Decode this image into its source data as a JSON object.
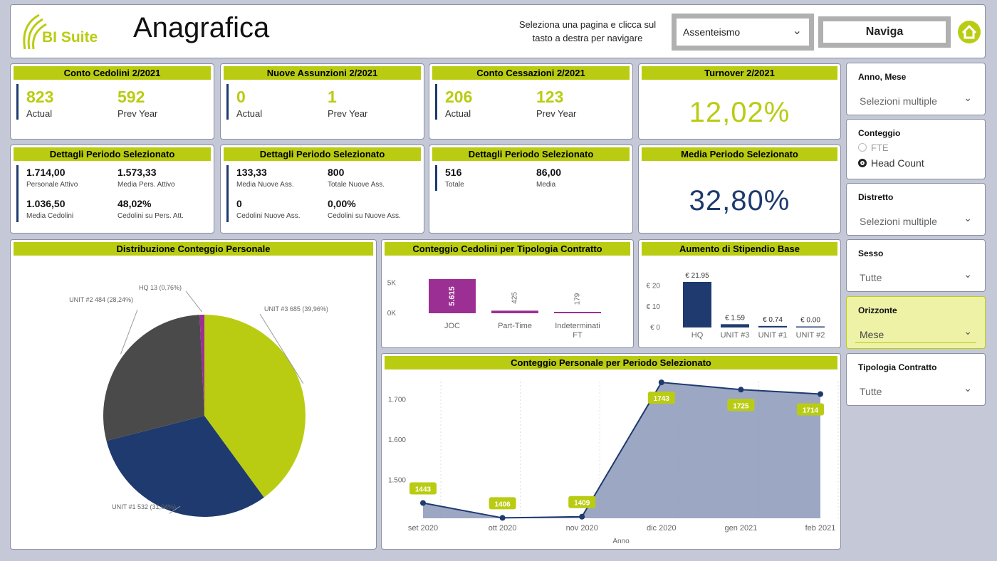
{
  "header": {
    "logo_text": "BI Suite",
    "page_title": "Anagrafica",
    "nav_hint_line1": "Seleziona una pagina e clicca sul",
    "nav_hint_line2": "tasto a destra per navigare",
    "dropdown_value": "Assenteismo",
    "naviga_label": "Naviga",
    "home_icon": "home-icon"
  },
  "kpi_row1": [
    {
      "title": "Conto Cedolini  2/2021",
      "actual": "823",
      "actual_label": "Actual",
      "prev": "592",
      "prev_label": "Prev Year"
    },
    {
      "title": "Nuove Assunzioni  2/2021",
      "actual": "0",
      "actual_label": "Actual",
      "prev": "1",
      "prev_label": "Prev Year"
    },
    {
      "title": "Conto Cessazioni  2/2021",
      "actual": "206",
      "actual_label": "Actual",
      "prev": "123",
      "prev_label": "Prev Year"
    },
    {
      "title": "Turnover  2/2021",
      "value": "12,02%"
    }
  ],
  "kpi_row2": [
    {
      "title": "Dettagli Periodo Selezionato",
      "v1": "1.714,00",
      "l1": "Personale Attivo",
      "v2": "1.573,33",
      "l2": "Media Pers. Attivo",
      "v3": "1.036,50",
      "l3": "Media Cedolini",
      "v4": "48,02%",
      "l4": "Cedolini su Pers. Att."
    },
    {
      "title": "Dettagli Periodo Selezionato",
      "v1": "133,33",
      "l1": "Media Nuove Ass.",
      "v2": "800",
      "l2": "Totale Nuove Ass.",
      "v3": "0",
      "l3": "Cedolini Nuove Ass.",
      "v4": "0,00%",
      "l4": "Cedolini su Nuove Ass."
    },
    {
      "title": "Dettagli Periodo Selezionato",
      "v1": "516",
      "l1": "Totale",
      "v2": "86,00",
      "l2": "Media"
    },
    {
      "title": "Media Periodo Selezionato",
      "value": "32,80%"
    }
  ],
  "slicers": [
    {
      "title": "Anno, Mese",
      "value": "Selezioni multiple"
    },
    {
      "title": "Conteggio",
      "options": [
        "FTE",
        "Head Count"
      ],
      "selected": "Head Count"
    },
    {
      "title": "Distretto",
      "value": "Selezioni multiple"
    },
    {
      "title": "Sesso",
      "value": "Tutte"
    },
    {
      "title": "Orizzonte",
      "value": "Mese"
    },
    {
      "title": "Tipologia Contratto",
      "value": "Tutte"
    }
  ],
  "colors": {
    "accent": "#b9cc12",
    "navy": "#1e3a6e",
    "purple": "#9c2f94",
    "grey": "#4a4a4a",
    "area": "#8b98b8"
  },
  "chart_data": [
    {
      "type": "pie",
      "title": "Distribuzione Conteggio Personale",
      "slices": [
        {
          "label": "UNIT #3 685 (39,96%)",
          "value": 685,
          "color": "#b9cc12"
        },
        {
          "label": "UNIT #1 532 (31,04%)",
          "value": 532,
          "color": "#1e3a6e"
        },
        {
          "label": "UNIT #2 484 (28,24%)",
          "value": 484,
          "color": "#4a4a4a"
        },
        {
          "label": "HQ 13 (0,76%)",
          "value": 13,
          "color": "#9c2f94"
        }
      ]
    },
    {
      "type": "bar",
      "title": "Conteggio Cedolini per Tipologia Contratto",
      "categories": [
        "JOC",
        "Part-Time",
        "Indeterminati FT"
      ],
      "values": [
        5615,
        425,
        179
      ],
      "data_labels": [
        "5.615",
        "425",
        "179"
      ],
      "yticks": [
        "5K",
        "0K"
      ],
      "ylim": [
        0,
        5615
      ]
    },
    {
      "type": "bar",
      "title": "Aumento di Stipendio Base",
      "categories": [
        "HQ",
        "UNIT #3",
        "UNIT #1",
        "UNIT #2"
      ],
      "values": [
        21.95,
        1.59,
        0.74,
        0.0
      ],
      "data_labels": [
        "€ 21.95",
        "€ 1.59",
        "€ 0.74",
        "€ 0.00"
      ],
      "yticks": [
        "€ 20",
        "€ 10",
        "€ 0"
      ],
      "ylim": [
        0,
        21.95
      ]
    },
    {
      "type": "area",
      "title": "Conteggio Personale per Periodo Selezionato",
      "x": [
        "set 2020",
        "ott 2020",
        "nov 2020",
        "dic 2020",
        "gen 2021",
        "feb 2021"
      ],
      "values": [
        1443,
        1406,
        1409,
        1743,
        1725,
        1714
      ],
      "xlabel": "Anno",
      "yticks": [
        "1.700",
        "1.600",
        "1.500"
      ],
      "ylim": [
        1405,
        1745
      ]
    }
  ]
}
